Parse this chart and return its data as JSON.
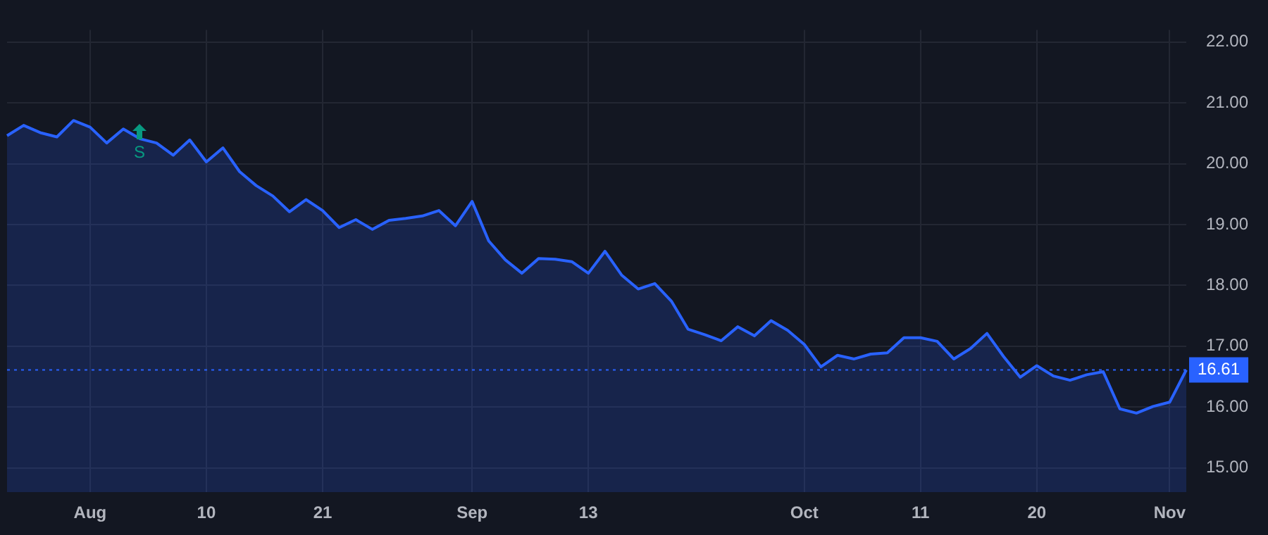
{
  "chart_data": {
    "type": "area",
    "categories": [
      null,
      null,
      null,
      null,
      null,
      "Aug",
      null,
      null,
      null,
      null,
      null,
      null,
      "10",
      null,
      null,
      null,
      null,
      null,
      null,
      "21",
      null,
      null,
      null,
      null,
      null,
      null,
      null,
      null,
      "Sep",
      null,
      null,
      null,
      null,
      null,
      null,
      "13",
      null,
      null,
      null,
      null,
      null,
      null,
      null,
      null,
      null,
      null,
      null,
      null,
      "Oct",
      null,
      null,
      null,
      null,
      null,
      null,
      "11",
      null,
      null,
      null,
      null,
      null,
      null,
      "20",
      null,
      null,
      null,
      null,
      null,
      null,
      null,
      "Nov",
      null
    ],
    "series": [
      {
        "color": "#2962ff",
        "values": [
          20.46,
          20.63,
          20.51,
          20.44,
          20.71,
          20.6,
          20.34,
          20.57,
          20.41,
          20.34,
          20.14,
          20.39,
          20.03,
          20.26,
          19.87,
          19.64,
          19.47,
          19.21,
          19.41,
          19.23,
          18.95,
          19.08,
          18.92,
          19.07,
          19.1,
          19.14,
          19.23,
          18.98,
          19.38,
          18.73,
          18.42,
          18.2,
          18.44,
          18.43,
          18.39,
          18.2,
          18.56,
          18.17,
          17.94,
          18.03,
          17.74,
          17.28,
          17.19,
          17.09,
          17.32,
          17.17,
          17.42,
          17.26,
          17.03,
          16.66,
          16.85,
          16.79,
          16.87,
          16.89,
          17.14,
          17.14,
          17.08,
          16.79,
          16.96,
          17.21,
          16.83,
          16.49,
          16.68,
          16.51,
          16.44,
          16.53,
          16.58,
          15.97,
          15.9,
          16.01,
          16.08,
          16.61
        ]
      }
    ],
    "ylim": [
      14.6,
      22.2
    ],
    "yticks": [
      {
        "value": 15,
        "label": "15.00"
      },
      {
        "value": 16,
        "label": "16.00"
      },
      {
        "value": 17,
        "label": "17.00"
      },
      {
        "value": 18,
        "label": "18.00"
      },
      {
        "value": 19,
        "label": "19.00"
      },
      {
        "value": 20,
        "label": "20.00"
      },
      {
        "value": 21,
        "label": "21.00"
      },
      {
        "value": 22,
        "label": "22.00"
      }
    ],
    "ref_lines": [
      {
        "axis": "y",
        "value": 16.61,
        "label": "16.61",
        "color": "#2962ff",
        "line_style": "dotted"
      }
    ],
    "annotations": [
      "S"
    ],
    "grid": true,
    "legend": false,
    "marker": "none",
    "line_style": "solid"
  }
}
